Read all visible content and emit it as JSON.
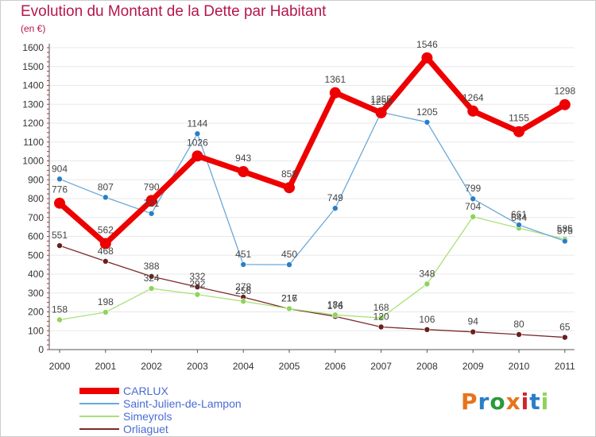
{
  "title": "Evolution du Montant de la Dette par Habitant",
  "subtitle": "(en €)",
  "logo": "Proxiti",
  "colors": {
    "title": "#b5174d",
    "legend_text": "#4a6cd4",
    "axis": "#555555",
    "grid": "#e8e8e8"
  },
  "chart_data": {
    "type": "line",
    "x": [
      "2000",
      "2001",
      "2002",
      "2003",
      "2004",
      "2005",
      "2006",
      "2007",
      "2008",
      "2009",
      "2010",
      "2011"
    ],
    "ylim": [
      0,
      1600
    ],
    "yticks": [
      0,
      100,
      200,
      300,
      400,
      500,
      600,
      700,
      800,
      900,
      1000,
      1100,
      1200,
      1300,
      1400,
      1500,
      1600
    ],
    "grid": true,
    "legend_position": "bottom-left",
    "series": [
      {
        "name": "CARLUX",
        "color": "#ee0000",
        "marker": "#ee0000",
        "values": [
          776,
          562,
          790,
          1026,
          943,
          858,
          1361,
          1255,
          1546,
          1264,
          1155,
          1298
        ]
      },
      {
        "name": "Saint-Julien-de-Lampon",
        "color": "#6aa8d8",
        "marker": "#2a7ec8",
        "values": [
          904,
          807,
          721,
          1144,
          451,
          450,
          749,
          1258,
          1205,
          799,
          661,
          575
        ]
      },
      {
        "name": "Simeyrols",
        "color": "#a8e07a",
        "marker": "#8dd45a",
        "values": [
          158,
          198,
          324,
          292,
          256,
          217,
          184,
          168,
          348,
          704,
          644,
          585
        ]
      },
      {
        "name": "Orliaguet",
        "color": "#7a2a2a",
        "marker": "#6a1f1f",
        "values": [
          551,
          468,
          388,
          332,
          278,
          216,
          176,
          120,
          106,
          94,
          80,
          65
        ]
      }
    ]
  }
}
